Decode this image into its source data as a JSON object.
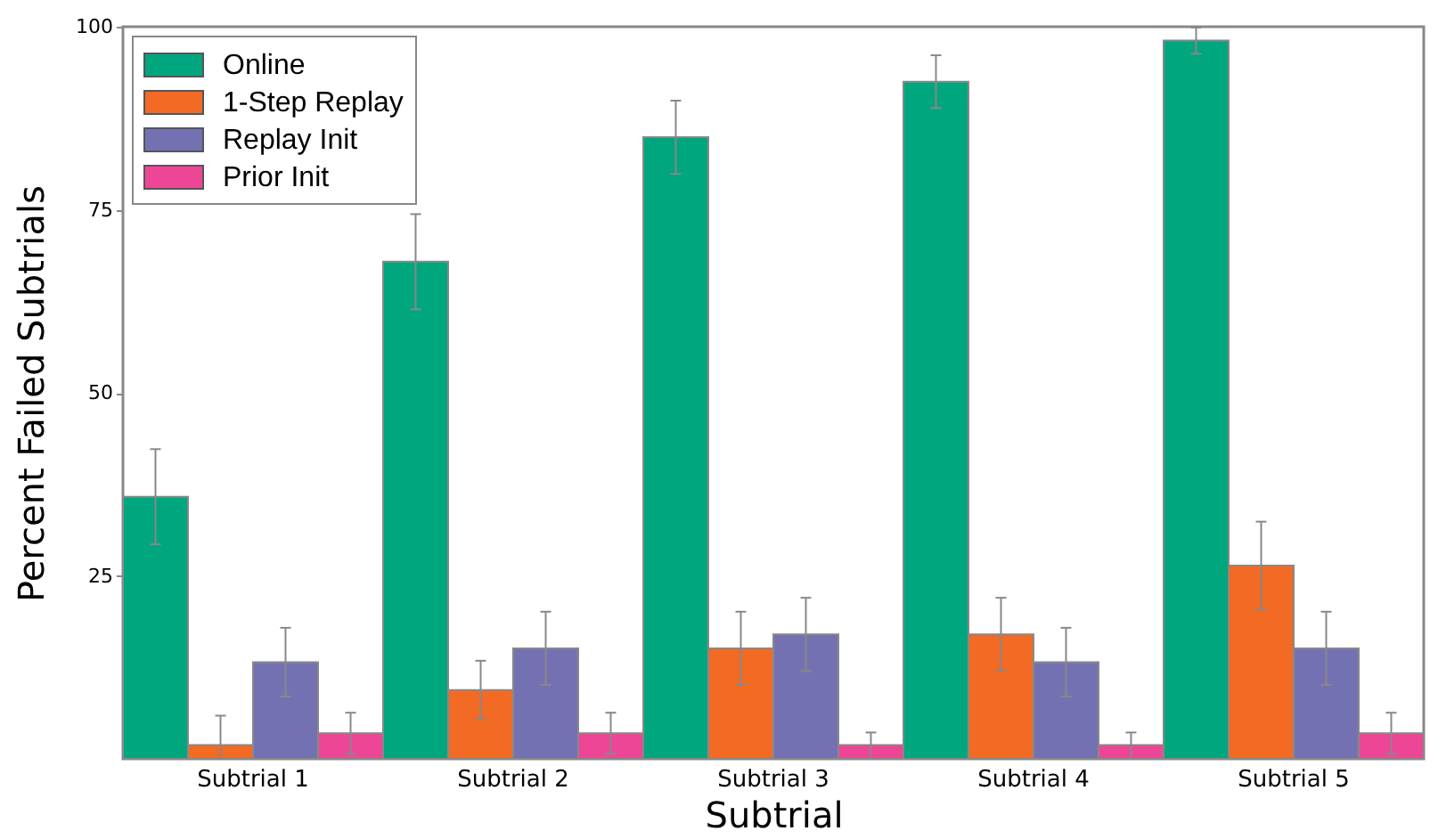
{
  "chart_data": {
    "type": "bar",
    "xlabel": "Subtrial",
    "ylabel": "Percent Failed Subtrials",
    "categories": [
      "Subtrial 1",
      "Subtrial 2",
      "Subtrial 3",
      "Subtrial 4",
      "Subtrial 5"
    ],
    "series": [
      {
        "name": "Online",
        "color": "#00a67e",
        "values": [
          35.8,
          67.9,
          84.9,
          92.5,
          98.1
        ],
        "errors": [
          6.5,
          6.5,
          5,
          3.6,
          1.8
        ]
      },
      {
        "name": "1-Step Replay",
        "color": "#f26a24",
        "values": [
          1.9,
          9.4,
          15.1,
          17.0,
          26.4
        ],
        "errors": [
          [
            0,
            5.9
          ],
          4,
          5,
          5,
          6
        ]
      },
      {
        "name": "Replay Init",
        "color": "#7471b3",
        "values": [
          13.2,
          15.1,
          17.0,
          13.2,
          15.1
        ],
        "errors": [
          4.7,
          5,
          5,
          4.7,
          5
        ]
      },
      {
        "name": "Prior Init",
        "color": "#ee4697",
        "values": [
          3.5,
          3.5,
          1.9,
          1.9,
          3.5
        ],
        "errors": [
          2.8,
          2.8,
          [
            0,
            3.6
          ],
          [
            0,
            3.6
          ],
          2.8
        ]
      }
    ],
    "ylim": [
      0,
      100
    ],
    "yticks": [
      25,
      50,
      75,
      100
    ],
    "grid": false,
    "legend": "top left"
  }
}
